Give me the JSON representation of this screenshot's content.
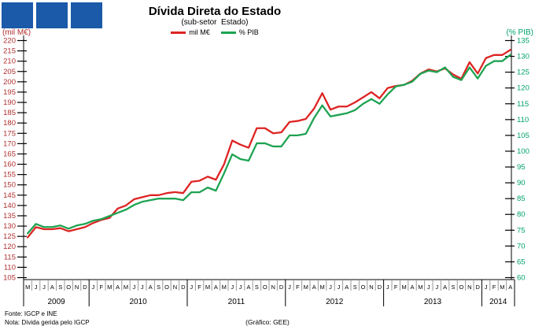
{
  "logo": {
    "square_color": "#1a5aa8",
    "squares": [
      "",
      "",
      ""
    ]
  },
  "header": {
    "title": "Dívida Direta do Estado",
    "subtitle": "(sub-setor  Estado)"
  },
  "footer": {
    "source": "Fonte: IGCP e INE",
    "note": "Nota: Dívida gerida pelo IGCP",
    "credit": "(Gráfico: GEE)"
  },
  "chart_data": {
    "type": "line",
    "title": "Dívida Direta do Estado",
    "subtitle": "(sub-setor  Estado)",
    "grid": false,
    "legend_position": "top-center",
    "x_axis": {
      "unit": "month",
      "years": [
        {
          "label": "2009",
          "months": [
            "M",
            "J",
            "J",
            "A",
            "S",
            "O",
            "N",
            "D"
          ]
        },
        {
          "label": "2010",
          "months": [
            "J",
            "F",
            "M",
            "A",
            "M",
            "J",
            "J",
            "A",
            "S",
            "O",
            "N",
            "D"
          ]
        },
        {
          "label": "2011",
          "months": [
            "J",
            "F",
            "M",
            "A",
            "M",
            "J",
            "J",
            "A",
            "S",
            "O",
            "N",
            "D"
          ]
        },
        {
          "label": "2012",
          "months": [
            "J",
            "F",
            "M",
            "A",
            "M",
            "J",
            "J",
            "A",
            "S",
            "O",
            "N",
            "D"
          ]
        },
        {
          "label": "2013",
          "months": [
            "J",
            "F",
            "M",
            "A",
            "M",
            "J",
            "J",
            "A",
            "S",
            "O",
            "N",
            "D"
          ]
        },
        {
          "label": "2014",
          "months": [
            "J",
            "F",
            "M",
            "A"
          ]
        }
      ]
    },
    "axes": {
      "left": {
        "label": "(mil M€)",
        "min": 105,
        "max": 220,
        "step": 5,
        "text_color": "#b03030"
      },
      "right": {
        "label": "(% PIB)",
        "min": 60,
        "max": 135,
        "step": 5,
        "text_color": "#00a366"
      }
    },
    "series": [
      {
        "name": "mil M€",
        "axis": "left",
        "color": "#dd2423",
        "values": [
          124.5,
          129.5,
          128.5,
          128.5,
          129,
          127.5,
          128.5,
          129.5,
          131.5,
          133,
          134,
          138.5,
          140,
          143,
          144,
          145,
          145,
          146,
          146.5,
          146,
          151.5,
          152,
          154,
          152.5,
          160,
          171.5,
          169.5,
          168,
          177.5,
          177.5,
          175,
          175.5,
          180.5,
          181,
          182,
          187,
          194.5,
          186.5,
          188,
          188,
          190,
          192.5,
          195,
          192,
          197,
          198,
          198.5,
          200.5,
          204,
          206,
          205,
          206.5,
          203.5,
          201.5,
          209.5,
          204,
          211.5,
          213,
          213,
          215.5
        ]
      },
      {
        "name": "% PIB",
        "axis": "right",
        "color": "#1ea352",
        "values": [
          74,
          77,
          76,
          76,
          76.5,
          75.5,
          76.5,
          77,
          78,
          78.5,
          79.5,
          80.5,
          81.5,
          83,
          84,
          84.5,
          85,
          85,
          85,
          84.5,
          87,
          87,
          88.5,
          87.5,
          93,
          99,
          97.5,
          97,
          102.5,
          102.5,
          101.5,
          101.5,
          105,
          105,
          105.5,
          110.5,
          114.5,
          111,
          111.5,
          112,
          113,
          115,
          116.5,
          115,
          118,
          120.5,
          121,
          122,
          124.5,
          125.5,
          125,
          126.5,
          123.5,
          122.5,
          126.5,
          123,
          127,
          128.5,
          128.5,
          130.5
        ]
      }
    ]
  }
}
